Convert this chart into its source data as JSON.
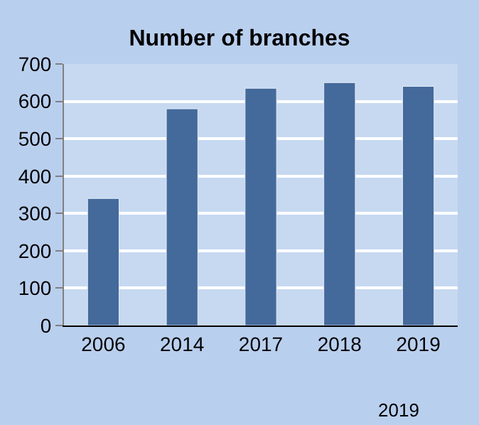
{
  "chart_data": {
    "type": "bar",
    "title": "Number of branches",
    "categories": [
      "2006",
      "2014",
      "2017",
      "2018",
      "2019"
    ],
    "values": [
      340,
      580,
      635,
      650,
      640
    ],
    "color": "#44699b",
    "ylim": [
      0,
      700
    ],
    "yticks": [
      0,
      100,
      200,
      300,
      400,
      500,
      600,
      700
    ],
    "grid": "y",
    "annotations": [
      "2019"
    ]
  }
}
